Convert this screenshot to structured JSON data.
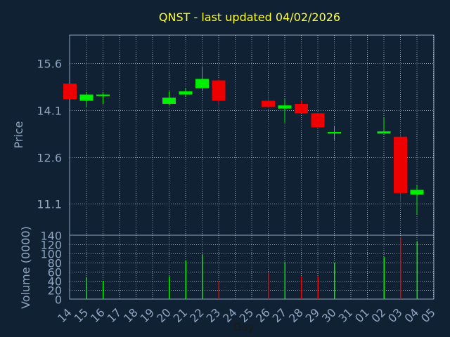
{
  "title": "QNST - last updated 04/02/2026",
  "colors": {
    "background": "#0f2132",
    "text": "#8fa5c0",
    "title": "#ffff33",
    "up": "#00ee00",
    "down": "#ee0000",
    "grid": "#b8c4d4",
    "axis": "#8fa5c0"
  },
  "chart_data": [
    {
      "type": "candlestick",
      "ylabel": "Price",
      "ylim": [
        10.1,
        16.5
      ],
      "yticks": [
        "15.6",
        "14.1",
        "12.6",
        "11.1"
      ],
      "ytick_values": [
        15.6,
        14.1,
        12.6,
        11.1
      ],
      "grid": true,
      "x": [
        "14",
        "15",
        "16",
        "17",
        "18",
        "19",
        "20",
        "21",
        "22",
        "23",
        "24",
        "25",
        "26",
        "27",
        "28",
        "29",
        "30",
        "31",
        "01",
        "02",
        "03",
        "04",
        "05"
      ],
      "candles": [
        {
          "day": "14",
          "open": 14.95,
          "close": 14.45,
          "high": 14.95,
          "low": 14.45
        },
        {
          "day": "15",
          "open": 14.4,
          "close": 14.6,
          "high": 14.65,
          "low": 14.2
        },
        {
          "day": "16",
          "open": 14.55,
          "close": 14.6,
          "high": 14.65,
          "low": 14.3
        },
        {
          "day": "20",
          "open": 14.3,
          "close": 14.5,
          "high": 14.7,
          "low": 14.25
        },
        {
          "day": "21",
          "open": 14.6,
          "close": 14.7,
          "high": 14.8,
          "low": 14.55
        },
        {
          "day": "22",
          "open": 14.8,
          "close": 15.1,
          "high": 15.5,
          "low": 14.7
        },
        {
          "day": "23",
          "open": 15.05,
          "close": 14.4,
          "high": 15.1,
          "low": 14.3
        },
        {
          "day": "26",
          "open": 14.4,
          "close": 14.2,
          "high": 14.65,
          "low": 14.2
        },
        {
          "day": "27",
          "open": 14.15,
          "close": 14.25,
          "high": 14.45,
          "low": 13.7
        },
        {
          "day": "28",
          "open": 14.3,
          "close": 14.0,
          "high": 14.4,
          "low": 14.0
        },
        {
          "day": "29",
          "open": 14.0,
          "close": 13.55,
          "high": 14.0,
          "low": 13.55
        },
        {
          "day": "30",
          "open": 13.35,
          "close": 13.4,
          "high": 13.6,
          "low": 13.15
        },
        {
          "day": "02",
          "open": 13.35,
          "close": 13.42,
          "high": 13.85,
          "low": 13.35
        },
        {
          "day": "03",
          "open": 13.25,
          "close": 11.45,
          "high": 13.35,
          "low": 11.15
        },
        {
          "day": "04",
          "open": 11.4,
          "close": 11.55,
          "high": 11.7,
          "low": 10.75
        }
      ]
    },
    {
      "type": "bar",
      "ylabel": "Volume (0000)",
      "xlabel": "Day",
      "ylim": [
        0,
        140
      ],
      "yticks": [
        "140",
        "120",
        "100",
        "80",
        "60",
        "40",
        "20",
        "0"
      ],
      "ytick_values": [
        140,
        120,
        100,
        80,
        60,
        40,
        20,
        0
      ],
      "categories": [
        "14",
        "15",
        "16",
        "17",
        "18",
        "19",
        "20",
        "21",
        "22",
        "23",
        "24",
        "25",
        "26",
        "27",
        "28",
        "29",
        "30",
        "31",
        "01",
        "02",
        "03",
        "04",
        "05"
      ],
      "volumes": [
        {
          "day": "15",
          "value": 48,
          "dir": "up"
        },
        {
          "day": "16",
          "value": 40,
          "dir": "up"
        },
        {
          "day": "20",
          "value": 50,
          "dir": "up"
        },
        {
          "day": "21",
          "value": 85,
          "dir": "up"
        },
        {
          "day": "22",
          "value": 97,
          "dir": "up"
        },
        {
          "day": "23",
          "value": 40,
          "dir": "down"
        },
        {
          "day": "26",
          "value": 58,
          "dir": "down"
        },
        {
          "day": "27",
          "value": 82,
          "dir": "up"
        },
        {
          "day": "28",
          "value": 50,
          "dir": "down"
        },
        {
          "day": "29",
          "value": 50,
          "dir": "down"
        },
        {
          "day": "30",
          "value": 80,
          "dir": "up"
        },
        {
          "day": "02",
          "value": 92,
          "dir": "up"
        },
        {
          "day": "03",
          "value": 135,
          "dir": "down"
        },
        {
          "day": "04",
          "value": 127,
          "dir": "up"
        }
      ]
    }
  ]
}
